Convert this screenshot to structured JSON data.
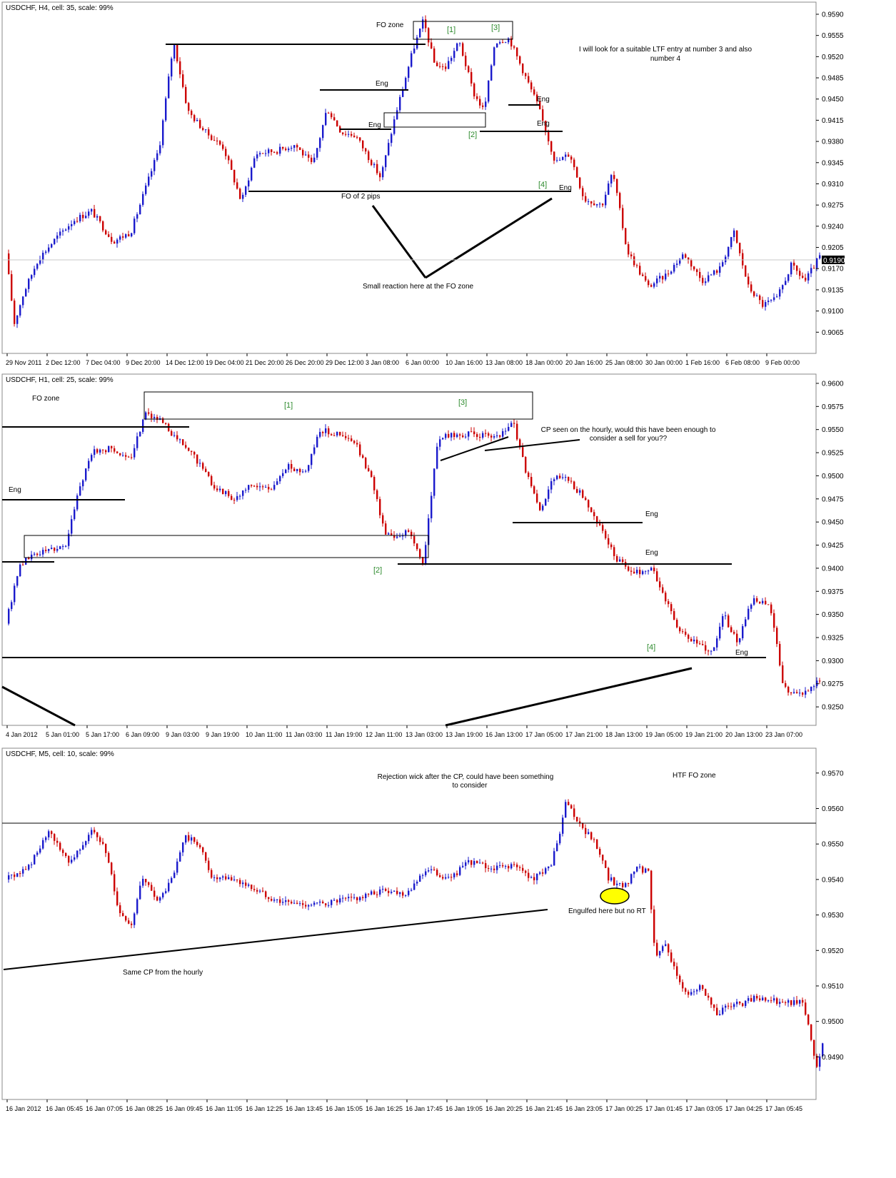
{
  "chart_data": [
    {
      "type": "candlestick",
      "title": "USDCHF, H4, cell: 35, scale: 99%",
      "ylim": [
        0.903,
        0.961
      ],
      "yticks": [
        "0.9590",
        "0.9555",
        "0.9520",
        "0.9485",
        "0.9450",
        "0.9415",
        "0.9380",
        "0.9345",
        "0.9310",
        "0.9275",
        "0.9240",
        "0.9205",
        "0.9170",
        "0.9135",
        "0.9100",
        "0.9065"
      ],
      "xticks": [
        "29 Nov 2011",
        "2 Dec 12:00",
        "7 Dec 04:00",
        "9 Dec 20:00",
        "14 Dec 12:00",
        "19 Dec 04:00",
        "21 Dec 20:00",
        "26 Dec 20:00",
        "29 Dec 12:00",
        "3 Jan 08:00",
        "6 Jan 00:00",
        "10 Jan 16:00",
        "13 Jan 08:00",
        "18 Jan 00:00",
        "20 Jan 16:00",
        "25 Jan 08:00",
        "30 Jan 00:00",
        "1 Feb 16:00",
        "6 Feb 08:00",
        "9 Feb 00:00"
      ],
      "current_price": "0.9190",
      "price_path": [
        [
          0,
          0.9195
        ],
        [
          12,
          0.908
        ],
        [
          25,
          0.913
        ],
        [
          45,
          0.9185
        ],
        [
          70,
          0.922
        ],
        [
          95,
          0.925
        ],
        [
          120,
          0.9265
        ],
        [
          150,
          0.9215
        ],
        [
          175,
          0.923
        ],
        [
          195,
          0.93
        ],
        [
          215,
          0.937
        ],
        [
          235,
          0.9545
        ],
        [
          255,
          0.943
        ],
        [
          280,
          0.9395
        ],
        [
          305,
          0.937
        ],
        [
          330,
          0.928
        ],
        [
          350,
          0.936
        ],
        [
          380,
          0.9365
        ],
        [
          405,
          0.9375
        ],
        [
          430,
          0.934
        ],
        [
          450,
          0.9435
        ],
        [
          470,
          0.9395
        ],
        [
          490,
          0.939
        ],
        [
          510,
          0.935
        ],
        [
          525,
          0.932
        ],
        [
          545,
          0.942
        ],
        [
          570,
          0.953
        ],
        [
          585,
          0.958
        ],
        [
          600,
          0.951
        ],
        [
          615,
          0.95
        ],
        [
          635,
          0.9545
        ],
        [
          655,
          0.946
        ],
        [
          670,
          0.943
        ],
        [
          685,
          0.9545
        ],
        [
          705,
          0.955
        ],
        [
          725,
          0.9495
        ],
        [
          745,
          0.944
        ],
        [
          770,
          0.9345
        ],
        [
          790,
          0.936
        ],
        [
          810,
          0.9285
        ],
        [
          835,
          0.9275
        ],
        [
          850,
          0.933
        ],
        [
          870,
          0.92
        ],
        [
          900,
          0.914
        ],
        [
          925,
          0.916
        ],
        [
          950,
          0.9195
        ],
        [
          975,
          0.915
        ],
        [
          1000,
          0.917
        ],
        [
          1020,
          0.923
        ],
        [
          1040,
          0.914
        ],
        [
          1060,
          0.911
        ],
        [
          1080,
          0.912
        ],
        [
          1100,
          0.9175
        ],
        [
          1120,
          0.915
        ],
        [
          1140,
          0.919
        ]
      ],
      "annotations": [
        "FO zone",
        "[1]",
        "[3]",
        "I will look for a suitable LTF entry at number 3 and also number 4",
        "Eng",
        "Eng",
        "Eng",
        "Eng",
        "[2]",
        "[4]",
        "Eng",
        "FO of 2 pips",
        "Small reaction here at the FO zone"
      ]
    },
    {
      "type": "candlestick",
      "title": "USDCHF, H1, cell: 25, scale: 99%",
      "ylim": [
        0.923,
        0.961
      ],
      "yticks": [
        "0.9600",
        "0.9575",
        "0.9550",
        "0.9525",
        "0.9500",
        "0.9475",
        "0.9450",
        "0.9425",
        "0.9400",
        "0.9375",
        "0.9350",
        "0.9325",
        "0.9300",
        "0.9275",
        "0.9250"
      ],
      "xticks": [
        "4 Jan 2012",
        "5 Jan 01:00",
        "5 Jan 17:00",
        "6 Jan 09:00",
        "9 Jan 03:00",
        "9 Jan 19:00",
        "10 Jan 11:00",
        "11 Jan 03:00",
        "11 Jan 19:00",
        "12 Jan 11:00",
        "13 Jan 03:00",
        "13 Jan 19:00",
        "16 Jan 13:00",
        "17 Jan 05:00",
        "17 Jan 21:00",
        "18 Jan 13:00",
        "19 Jan 05:00",
        "19 Jan 21:00",
        "20 Jan 13:00",
        "23 Jan 07:00"
      ],
      "price_path": [
        [
          0,
          0.934
        ],
        [
          20,
          0.9405
        ],
        [
          40,
          0.9415
        ],
        [
          60,
          0.942
        ],
        [
          85,
          0.9425
        ],
        [
          100,
          0.948
        ],
        [
          120,
          0.9525
        ],
        [
          150,
          0.953
        ],
        [
          175,
          0.9515
        ],
        [
          195,
          0.957
        ],
        [
          215,
          0.956
        ],
        [
          240,
          0.954
        ],
        [
          265,
          0.952
        ],
        [
          290,
          0.949
        ],
        [
          320,
          0.9475
        ],
        [
          345,
          0.949
        ],
        [
          370,
          0.9485
        ],
        [
          395,
          0.951
        ],
        [
          420,
          0.9505
        ],
        [
          440,
          0.955
        ],
        [
          465,
          0.9545
        ],
        [
          490,
          0.9535
        ],
        [
          515,
          0.949
        ],
        [
          530,
          0.944
        ],
        [
          545,
          0.9435
        ],
        [
          565,
          0.944
        ],
        [
          585,
          0.9405
        ],
        [
          605,
          0.954
        ],
        [
          630,
          0.9545
        ],
        [
          660,
          0.9545
        ],
        [
          690,
          0.954
        ],
        [
          710,
          0.956
        ],
        [
          730,
          0.95
        ],
        [
          750,
          0.946
        ],
        [
          765,
          0.95
        ],
        [
          790,
          0.9495
        ],
        [
          815,
          0.947
        ],
        [
          835,
          0.944
        ],
        [
          855,
          0.941
        ],
        [
          880,
          0.9395
        ],
        [
          905,
          0.94
        ],
        [
          925,
          0.9365
        ],
        [
          945,
          0.933
        ],
        [
          965,
          0.932
        ],
        [
          990,
          0.931
        ],
        [
          1005,
          0.935
        ],
        [
          1025,
          0.932
        ],
        [
          1045,
          0.9365
        ],
        [
          1070,
          0.936
        ],
        [
          1090,
          0.927
        ],
        [
          1110,
          0.9265
        ],
        [
          1130,
          0.927
        ],
        [
          1140,
          0.928
        ]
      ],
      "annotations": [
        "FO zone",
        "[1]",
        "[3]",
        "CP seen on the hourly, would this have been enough to",
        "consider a sell for you??",
        "Eng",
        "Eng",
        "Eng",
        "Eng",
        "[2]",
        "[4]"
      ]
    },
    {
      "type": "candlestick",
      "title": "USDCHF, M5, cell: 10, scale: 99%",
      "ylim": [
        0.9478,
        0.9577
      ],
      "yticks": [
        "0.9570",
        "0.9560",
        "0.9550",
        "0.9540",
        "0.9530",
        "0.9520",
        "0.9510",
        "0.9500",
        "0.9490"
      ],
      "xticks": [
        "16 Jan 2012",
        "16 Jan 05:45",
        "16 Jan 07:05",
        "16 Jan 08:25",
        "16 Jan 09:45",
        "16 Jan 11:05",
        "16 Jan 12:25",
        "16 Jan 13:45",
        "16 Jan 15:05",
        "16 Jan 16:25",
        "16 Jan 17:45",
        "16 Jan 19:05",
        "16 Jan 20:25",
        "16 Jan 21:45",
        "16 Jan 23:05",
        "17 Jan 00:25",
        "17 Jan 01:45",
        "17 Jan 03:05",
        "17 Jan 04:25",
        "17 Jan 05:45"
      ],
      "price_path": [
        [
          0,
          0.954
        ],
        [
          30,
          0.9543
        ],
        [
          60,
          0.9553
        ],
        [
          90,
          0.9545
        ],
        [
          120,
          0.9554
        ],
        [
          140,
          0.9548
        ],
        [
          160,
          0.953
        ],
        [
          175,
          0.9526
        ],
        [
          190,
          0.954
        ],
        [
          215,
          0.9534
        ],
        [
          235,
          0.9541
        ],
        [
          250,
          0.9552
        ],
        [
          270,
          0.955
        ],
        [
          290,
          0.954
        ],
        [
          320,
          0.954
        ],
        [
          350,
          0.9537
        ],
        [
          380,
          0.9534
        ],
        [
          410,
          0.9533
        ],
        [
          440,
          0.9533
        ],
        [
          470,
          0.9534
        ],
        [
          500,
          0.9535
        ],
        [
          530,
          0.9537
        ],
        [
          560,
          0.9536
        ],
        [
          590,
          0.9543
        ],
        [
          620,
          0.954
        ],
        [
          650,
          0.9545
        ],
        [
          680,
          0.9543
        ],
        [
          710,
          0.9544
        ],
        [
          740,
          0.954
        ],
        [
          765,
          0.9545
        ],
        [
          775,
          0.9552
        ],
        [
          785,
          0.9562
        ],
        [
          800,
          0.9556
        ],
        [
          815,
          0.9553
        ],
        [
          830,
          0.9549
        ],
        [
          845,
          0.954
        ],
        [
          865,
          0.9538
        ],
        [
          885,
          0.9543
        ],
        [
          900,
          0.9542
        ],
        [
          910,
          0.9518
        ],
        [
          925,
          0.9522
        ],
        [
          940,
          0.9512
        ],
        [
          955,
          0.9508
        ],
        [
          975,
          0.951
        ],
        [
          995,
          0.9502
        ],
        [
          1010,
          0.9504
        ],
        [
          1030,
          0.9505
        ],
        [
          1050,
          0.9507
        ],
        [
          1075,
          0.9506
        ],
        [
          1100,
          0.9505
        ],
        [
          1115,
          0.9506
        ],
        [
          1125,
          0.9498
        ],
        [
          1135,
          0.9486
        ],
        [
          1145,
          0.9494
        ]
      ],
      "annotations": [
        "Rejection wick after the CP, could have been something",
        "to consider",
        "HTF FO zone",
        "Engulfed here but no RT",
        "Same CP from the hourly"
      ]
    }
  ]
}
